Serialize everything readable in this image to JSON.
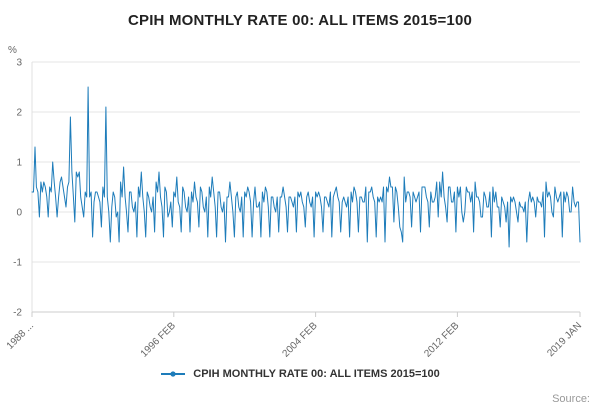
{
  "header": {
    "title": "CPIH MONTHLY RATE 00: ALL ITEMS 2015=100"
  },
  "legend": {
    "label": "CPIH MONTHLY RATE 00: ALL ITEMS 2015=100"
  },
  "footer": {
    "source_label": "Source:"
  },
  "chart_data": {
    "type": "line",
    "title": "CPIH MONTHLY RATE 00: ALL ITEMS 2015=100",
    "unit": "%",
    "frequency": "monthly",
    "x_start": "1988 FEB",
    "x_end": "2019 JAN",
    "ylim": [
      -2,
      3
    ],
    "yticks": [
      -2,
      -1,
      0,
      1,
      2,
      3
    ],
    "x_ticks": [
      {
        "label": "1988 ...",
        "index": 0
      },
      {
        "label": "1996 FEB",
        "index": 96
      },
      {
        "label": "2004 FEB",
        "index": 192
      },
      {
        "label": "2012 FEB",
        "index": 288
      },
      {
        "label": "2019 JAN",
        "index": 371
      }
    ],
    "grid": true,
    "legend_position": "bottom",
    "line_color": "#1d7cba",
    "values": [
      0.4,
      0.4,
      1.3,
      0.5,
      0.4,
      -0.1,
      0.6,
      0.4,
      0.6,
      0.5,
      0.3,
      -0.1,
      0.5,
      0.4,
      1.0,
      0.6,
      0.3,
      -0.1,
      0.3,
      0.6,
      0.7,
      0.5,
      0.3,
      0.1,
      0.5,
      0.6,
      1.9,
      0.8,
      0.3,
      -0.2,
      0.8,
      0.7,
      0.8,
      0.3,
      0.1,
      -0.1,
      0.4,
      0.3,
      2.5,
      0.3,
      0.4,
      -0.5,
      0.2,
      0.4,
      0.4,
      0.3,
      0.2,
      -0.3,
      0.5,
      0.3,
      2.1,
      0.3,
      0.0,
      -0.6,
      0.1,
      0.4,
      0.3,
      -0.1,
      0.0,
      -0.6,
      0.6,
      0.3,
      0.9,
      0.3,
      0.0,
      -0.4,
      0.4,
      0.4,
      0.1,
      0.0,
      0.2,
      -0.5,
      0.5,
      0.3,
      0.8,
      0.3,
      0.0,
      -0.5,
      0.4,
      0.3,
      0.1,
      0.0,
      0.3,
      -0.4,
      0.6,
      0.4,
      0.8,
      0.3,
      0.1,
      -0.5,
      0.5,
      0.4,
      -0.1,
      0.0,
      0.2,
      -0.3,
      0.4,
      0.3,
      0.7,
      0.2,
      0.1,
      -0.4,
      0.5,
      0.4,
      0.1,
      0.0,
      0.3,
      -0.4,
      0.4,
      0.2,
      0.6,
      0.3,
      0.2,
      -0.3,
      0.5,
      0.4,
      0.1,
      0.0,
      0.3,
      -0.5,
      0.5,
      0.3,
      0.7,
      0.4,
      0.1,
      -0.5,
      0.4,
      0.4,
      0.1,
      0.0,
      0.2,
      -0.6,
      0.3,
      0.3,
      0.6,
      0.3,
      0.0,
      -0.5,
      0.3,
      0.4,
      0.1,
      0.0,
      0.3,
      -0.5,
      0.4,
      0.3,
      0.5,
      0.4,
      0.2,
      -0.5,
      0.2,
      0.5,
      0.1,
      0.1,
      0.2,
      -0.5,
      0.4,
      0.2,
      0.5,
      0.4,
      0.1,
      -0.5,
      0.3,
      0.3,
      0.1,
      0.0,
      0.3,
      -0.4,
      0.3,
      0.3,
      0.5,
      0.3,
      0.1,
      -0.4,
      0.3,
      0.3,
      0.2,
      0.1,
      0.3,
      -0.4,
      0.4,
      0.3,
      0.4,
      0.2,
      0.1,
      -0.3,
      0.3,
      0.4,
      0.2,
      0.1,
      0.3,
      -0.5,
      0.4,
      0.3,
      0.4,
      0.3,
      0.1,
      -0.4,
      0.3,
      0.3,
      0.2,
      0.1,
      0.4,
      -0.5,
      0.3,
      0.4,
      0.5,
      0.3,
      0.2,
      -0.4,
      0.2,
      0.3,
      0.2,
      0.1,
      0.3,
      -0.5,
      0.4,
      0.2,
      0.5,
      0.4,
      0.2,
      -0.4,
      0.3,
      0.3,
      0.2,
      0.2,
      0.5,
      -0.6,
      0.4,
      0.4,
      0.5,
      0.3,
      0.2,
      -0.5,
      0.3,
      0.2,
      0.3,
      0.2,
      0.5,
      -0.6,
      0.5,
      0.4,
      0.7,
      0.5,
      0.5,
      -0.2,
      0.5,
      0.4,
      0.1,
      -0.3,
      -0.4,
      -0.6,
      0.7,
      0.2,
      0.4,
      0.4,
      0.3,
      -0.3,
      0.4,
      0.3,
      0.2,
      0.3,
      0.4,
      -0.4,
      0.5,
      0.5,
      0.5,
      0.3,
      0.2,
      -0.3,
      0.4,
      0.2,
      0.2,
      0.3,
      0.6,
      -0.1,
      0.6,
      0.3,
      0.8,
      0.3,
      0.1,
      -0.2,
      0.5,
      0.5,
      0.2,
      0.2,
      0.4,
      -0.4,
      0.5,
      0.3,
      0.5,
      0.0,
      -0.2,
      0.0,
      0.5,
      0.4,
      0.4,
      0.2,
      0.4,
      -0.4,
      0.6,
      0.3,
      0.3,
      0.2,
      -0.1,
      -0.1,
      0.4,
      0.3,
      0.1,
      0.1,
      0.4,
      -0.5,
      0.5,
      0.2,
      0.4,
      0.1,
      0.1,
      -0.3,
      0.3,
      0.2,
      0.1,
      -0.2,
      0.2,
      -0.7,
      0.3,
      0.2,
      0.3,
      0.2,
      0.0,
      -0.2,
      0.2,
      0.1,
      0.1,
      0.0,
      0.2,
      -0.6,
      0.2,
      0.4,
      0.2,
      0.3,
      0.2,
      -0.1,
      0.3,
      0.2,
      0.2,
      0.1,
      0.4,
      -0.5,
      0.6,
      0.3,
      0.4,
      0.3,
      0.0,
      -0.1,
      0.5,
      0.3,
      0.2,
      0.3,
      0.4,
      -0.5,
      0.4,
      0.2,
      0.4,
      0.3,
      0.0,
      0.0,
      0.5,
      0.2,
      0.1,
      0.2,
      0.2,
      -0.6
    ]
  }
}
